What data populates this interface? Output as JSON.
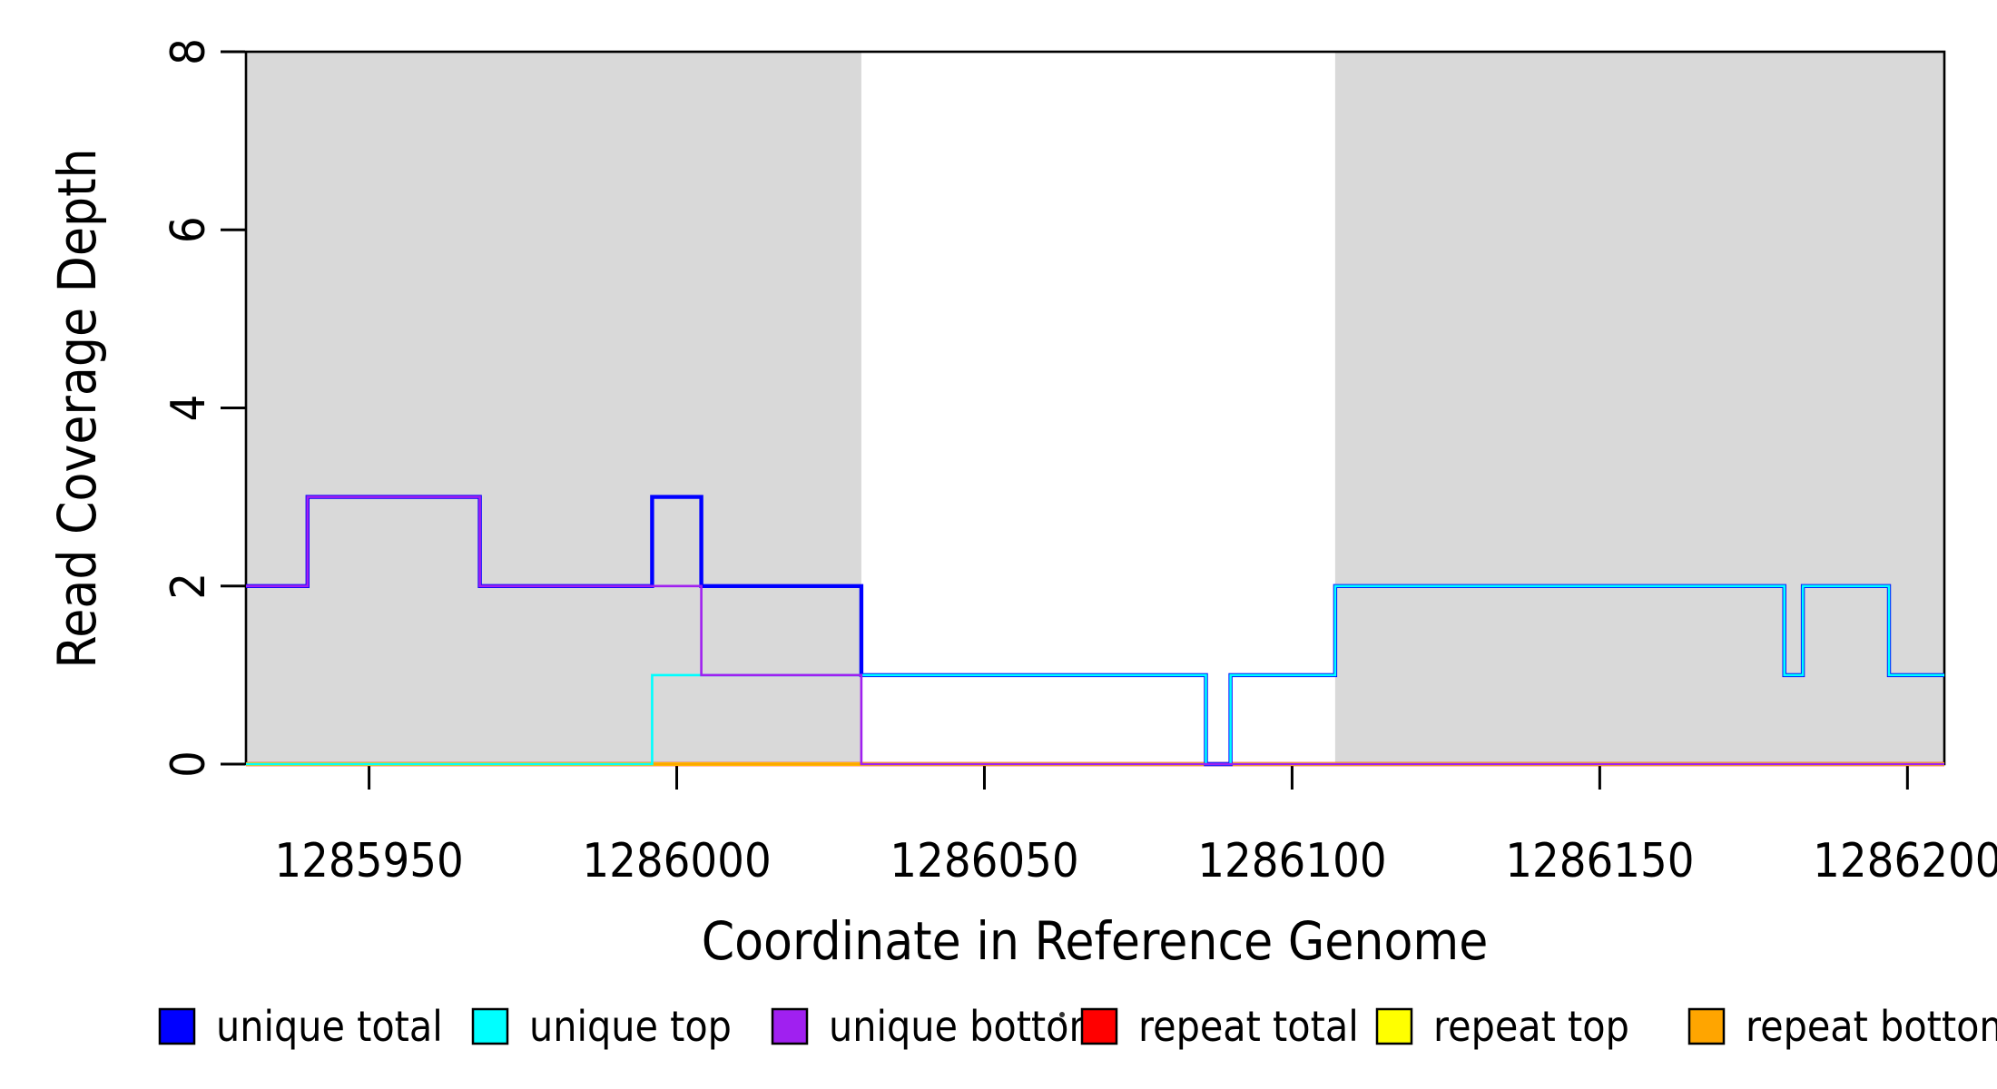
{
  "chart_data": {
    "type": "line",
    "subtype": "step-coverage-plot",
    "title": "",
    "xlabel": "Coordinate in Reference Genome",
    "ylabel": "Read Coverage Depth",
    "xlim": [
      1285930,
      1286206
    ],
    "ylim": [
      0,
      8
    ],
    "x_ticks": [
      "1285950",
      "1286000",
      "1286050",
      "1286100",
      "1286150",
      "1286200"
    ],
    "x_tick_values": [
      1285950,
      1286000,
      1286050,
      1286100,
      1286150,
      1286200
    ],
    "y_ticks": [
      "0",
      "2",
      "4",
      "6",
      "8"
    ],
    "y_tick_values": [
      0,
      2,
      4,
      6,
      8
    ],
    "grid": "off",
    "box_color": "#000000",
    "shaded_regions": [
      {
        "x_start": 1285930,
        "x_end": 1286030,
        "color": "#D9D9D9"
      },
      {
        "x_start": 1286107,
        "x_end": 1286206,
        "color": "#D9D9D9"
      }
    ],
    "x_end": 1286206,
    "series": [
      {
        "name": "repeat total",
        "color": "#FF0000",
        "width": 4.4,
        "steps": [
          [
            1285930,
            0
          ]
        ]
      },
      {
        "name": "repeat top",
        "color": "#FFFF00",
        "width": 4.0,
        "steps": [
          [
            1285930,
            0
          ]
        ]
      },
      {
        "name": "repeat bottom",
        "color": "#FFA500",
        "width": 3.4,
        "steps": [
          [
            1285930,
            0
          ]
        ]
      },
      {
        "name": "unique total",
        "color": "#0000FF",
        "width": 4.4,
        "steps": [
          [
            1285930,
            2
          ],
          [
            1285940,
            3
          ],
          [
            1285968,
            2
          ],
          [
            1285996,
            3
          ],
          [
            1286004,
            2
          ],
          [
            1286030,
            1
          ],
          [
            1286086,
            0
          ],
          [
            1286090,
            1
          ],
          [
            1286107,
            2
          ],
          [
            1286180,
            1
          ],
          [
            1286183,
            2
          ],
          [
            1286197,
            1
          ]
        ]
      },
      {
        "name": "unique top",
        "color": "#00FFFF",
        "width": 2.6,
        "steps": [
          [
            1285930,
            0
          ],
          [
            1285996,
            1
          ],
          [
            1286086,
            0
          ],
          [
            1286090,
            1
          ],
          [
            1286107,
            2
          ],
          [
            1286180,
            1
          ],
          [
            1286183,
            2
          ],
          [
            1286197,
            1
          ]
        ]
      },
      {
        "name": "unique bottom",
        "color": "#A020F0",
        "width": 2.6,
        "steps": [
          [
            1285930,
            2
          ],
          [
            1285940,
            3
          ],
          [
            1285968,
            2
          ],
          [
            1286004,
            1
          ],
          [
            1286030,
            0
          ]
        ]
      }
    ],
    "legend": {
      "position": "bottom",
      "entries": [
        {
          "label": "unique total",
          "color": "#0000FF"
        },
        {
          "label": "unique top",
          "color": "#00FFFF"
        },
        {
          "label": "unique bottom",
          "color": "#A020F0"
        },
        {
          "label": "repeat total",
          "color": "#FF0000"
        },
        {
          "label": "repeat top",
          "color": "#FFFF00"
        },
        {
          "label": "repeat bottom",
          "color": "#FFA500"
        }
      ]
    }
  }
}
